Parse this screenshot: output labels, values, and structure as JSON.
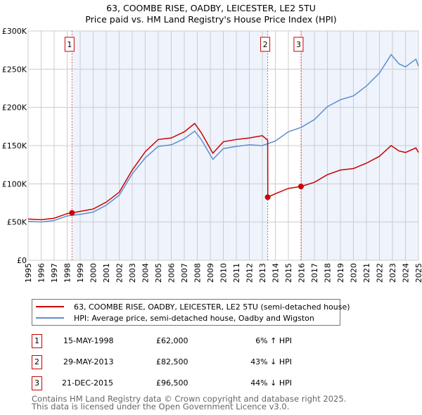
{
  "chart_data": {
    "type": "line",
    "title": "63, COOMBE RISE, OADBY, LEICESTER, LE2 5TU",
    "subtitle": "Price paid vs. HM Land Registry's House Price Index (HPI)",
    "xlim": [
      1995,
      2025
    ],
    "ylim": [
      0,
      300000
    ],
    "yticks": [
      {
        "v": 0,
        "label": "£0"
      },
      {
        "v": 50000,
        "label": "£50K"
      },
      {
        "v": 100000,
        "label": "£100K"
      },
      {
        "v": 150000,
        "label": "£150K"
      },
      {
        "v": 200000,
        "label": "£200K"
      },
      {
        "v": 250000,
        "label": "£250K"
      },
      {
        "v": 300000,
        "label": "£300K"
      }
    ],
    "xticks": [
      "1995",
      "1996",
      "1997",
      "1998",
      "1999",
      "2000",
      "2001",
      "2002",
      "2003",
      "2004",
      "2005",
      "2006",
      "2007",
      "2008",
      "2009",
      "2010",
      "2011",
      "2012",
      "2013",
      "2014",
      "2015",
      "2016",
      "2017",
      "2018",
      "2019",
      "2020",
      "2021",
      "2022",
      "2023",
      "2024",
      "2025"
    ],
    "grid": true,
    "series": [
      {
        "name": "63, COOMBE RISE, OADBY, LEICESTER, LE2 5TU (semi-detached house)",
        "color": "#cc0000",
        "x": [
          1995,
          1996,
          1997,
          1998,
          1998.37,
          1999,
          2000,
          2001,
          2002,
          2003,
          2004,
          2005,
          2006,
          2007,
          2007.8,
          2008.3,
          2009.2,
          2010,
          2011,
          2012,
          2013,
          2013.41,
          2013.42,
          2014,
          2015,
          2015.97,
          2017,
          2018,
          2019,
          2020,
          2021,
          2022,
          2022.9,
          2023.5,
          2024,
          2024.8,
          2025
        ],
        "y": [
          54000,
          53000,
          55000,
          61000,
          62000,
          64000,
          67000,
          76000,
          89000,
          118000,
          142000,
          158000,
          160000,
          168000,
          179000,
          167000,
          140000,
          155000,
          158000,
          160000,
          163000,
          157000,
          82500,
          87000,
          94000,
          96500,
          102000,
          112000,
          118000,
          120000,
          127000,
          136000,
          150000,
          143000,
          141000,
          147000,
          141000
        ]
      },
      {
        "name": "HPI: Average price, semi-detached house, Oadby and Wigston",
        "color": "#5b8fd0",
        "x": [
          1995,
          1996,
          1997,
          1998,
          1999,
          2000,
          2001,
          2002,
          2003,
          2004,
          2005,
          2006,
          2007,
          2007.8,
          2008.3,
          2009.2,
          2010,
          2011,
          2012,
          2013,
          2014,
          2015,
          2016,
          2017,
          2018,
          2019,
          2020,
          2021,
          2022,
          2022.9,
          2023.5,
          2024,
          2024.8,
          2025
        ],
        "y": [
          51000,
          50000,
          52000,
          58000,
          60000,
          63000,
          72000,
          85000,
          113000,
          134000,
          149000,
          151000,
          159000,
          169000,
          158000,
          132000,
          146000,
          149000,
          151000,
          150000,
          156000,
          168000,
          174000,
          184000,
          201000,
          210000,
          215000,
          228000,
          245000,
          269000,
          257000,
          253000,
          263000,
          254000
        ]
      }
    ],
    "shaded": [
      [
        1998.37,
        2013.41
      ],
      [
        2015.97,
        2025
      ]
    ],
    "sales": [
      {
        "n": "1",
        "x": 1998.37,
        "y": 62000
      },
      {
        "n": "2",
        "x": 2013.41,
        "y": 82500
      },
      {
        "n": "3",
        "x": 2015.97,
        "y": 96500
      }
    ]
  },
  "legend": {
    "price": "63, COOMBE RISE, OADBY, LEICESTER, LE2 5TU (semi-detached house)",
    "hpi": "HPI: Average price, semi-detached house, Oadby and Wigston"
  },
  "table": [
    {
      "n": "1",
      "date": "15-MAY-1998",
      "price": "£62,000",
      "hpi": "6% ↑ HPI"
    },
    {
      "n": "2",
      "date": "29-MAY-2013",
      "price": "£82,500",
      "hpi": "43% ↓ HPI"
    },
    {
      "n": "3",
      "date": "21-DEC-2015",
      "price": "£96,500",
      "hpi": "44% ↓ HPI"
    }
  ],
  "footer": {
    "line1": "Contains HM Land Registry data © Crown copyright and database right 2025.",
    "line2": "This data is licensed under the Open Government Licence v3.0."
  }
}
